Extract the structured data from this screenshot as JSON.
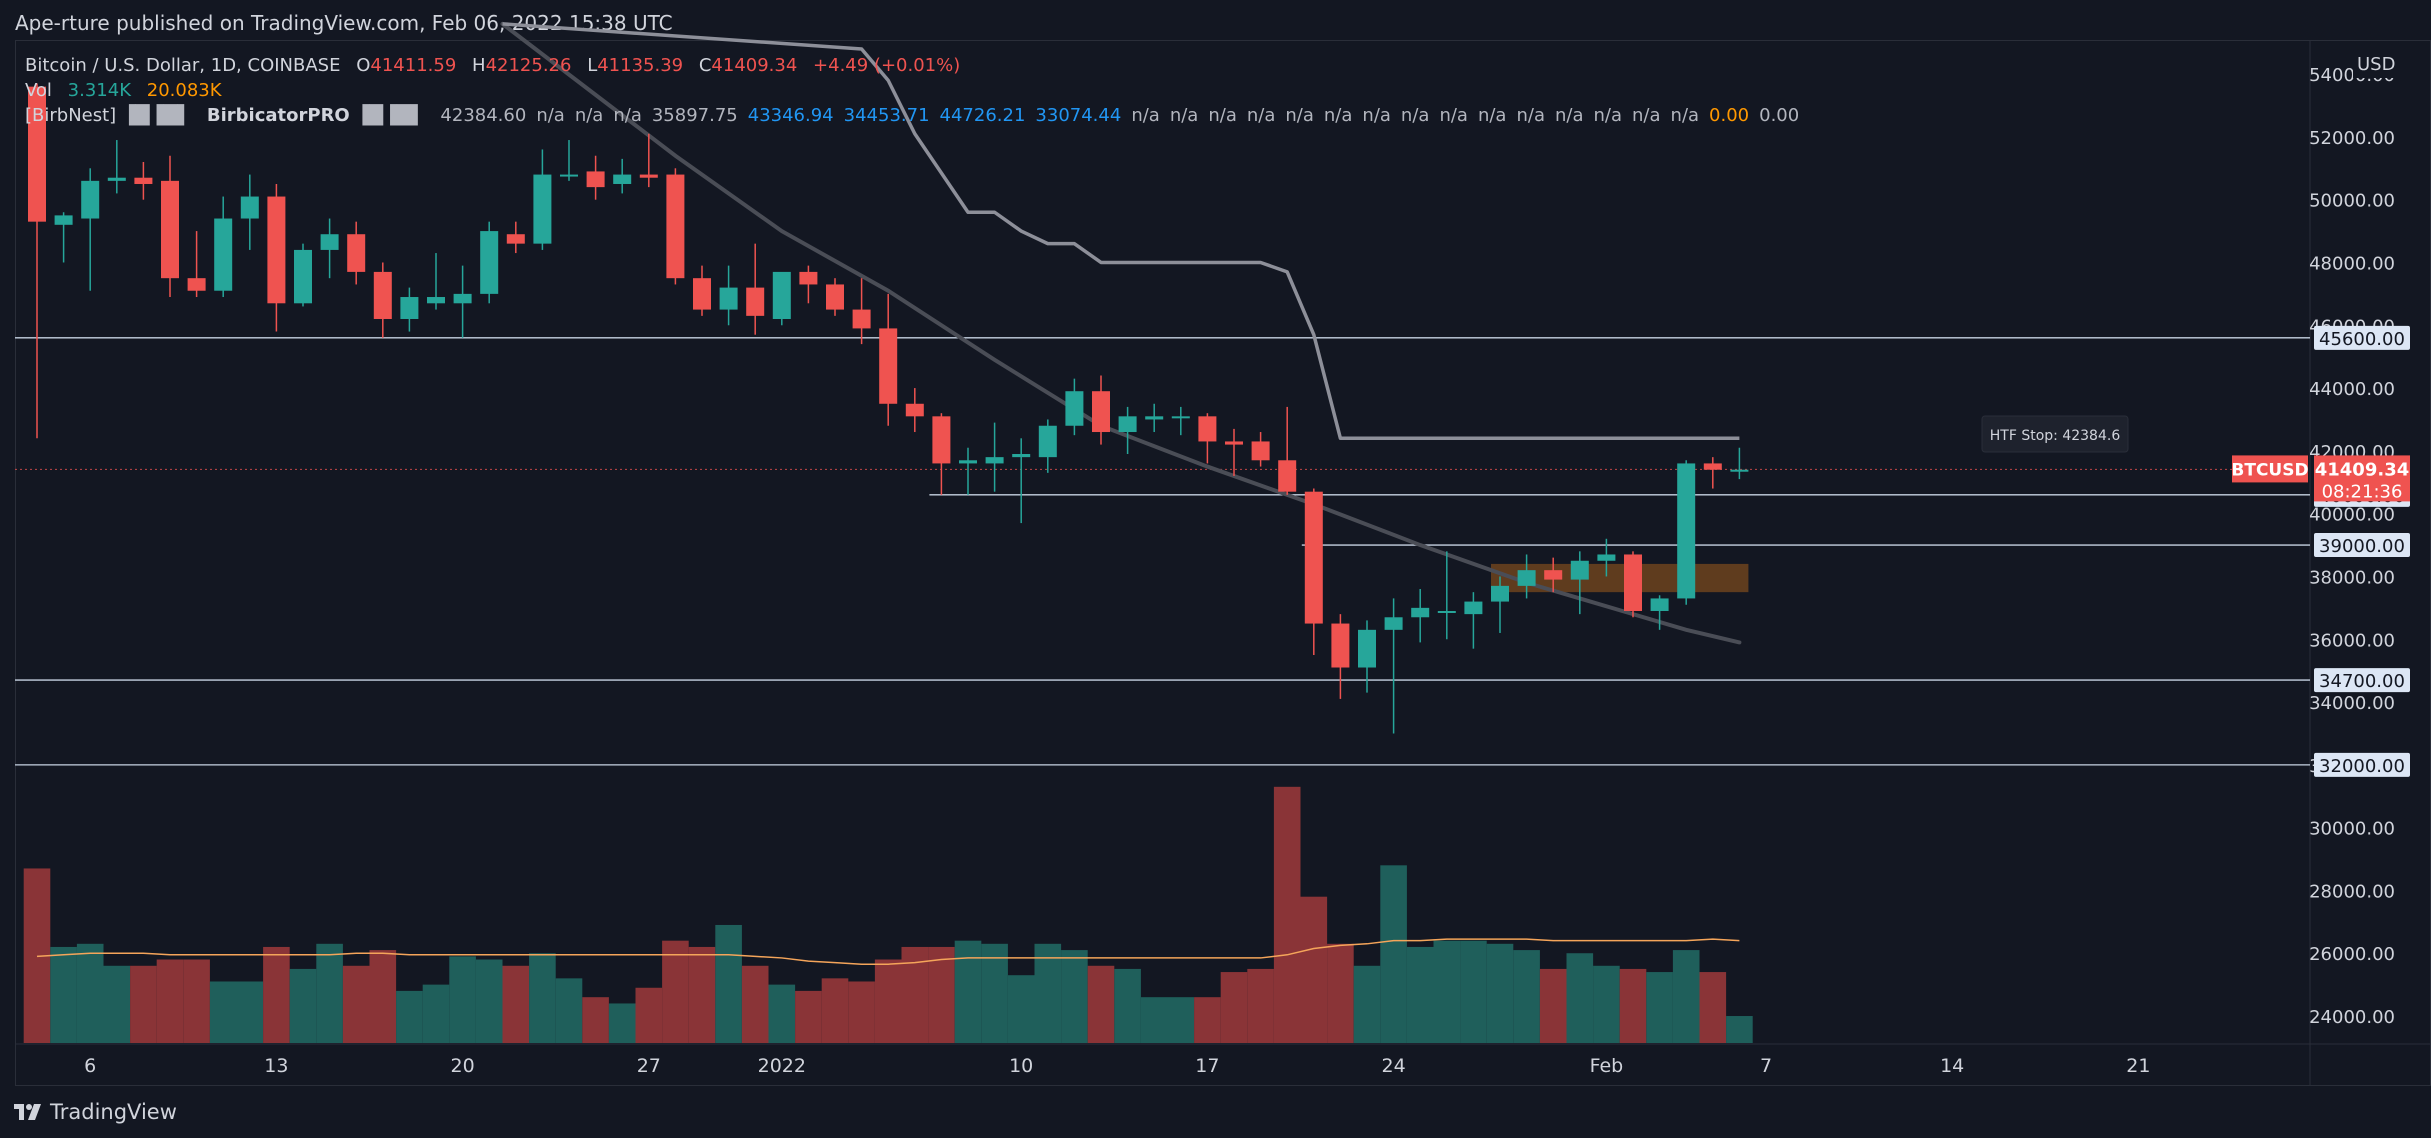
{
  "header": {
    "published": "Ape-rture published on TradingView.com, Feb 06, 2022 15:38 UTC"
  },
  "legend": {
    "symbol": "Bitcoin / U.S. Dollar, 1D, COINBASE",
    "o_label": "O",
    "o": "41411.59",
    "h_label": "H",
    "h": "42125.26",
    "l_label": "L",
    "l": "41135.39",
    "c_label": "C",
    "c": "41409.34",
    "change": "+4.49 (+0.01%)",
    "vol_label": "Vol",
    "vol": "3.314K",
    "vol_ma": "20.083K",
    "indicator_label": "[BirbNest]",
    "indicator2_label": "BirbicatorPRO",
    "ind_values": [
      "42384.60",
      "n/a",
      "n/a",
      "n/a",
      "35897.75"
    ],
    "ind_blue": [
      "43346.94",
      "34453.71",
      "44726.21",
      "33074.44"
    ],
    "ind_na": [
      "n/a",
      "n/a",
      "n/a",
      "n/a",
      "n/a",
      "n/a",
      "n/a",
      "n/a",
      "n/a",
      "n/a",
      "n/a",
      "n/a",
      "n/a",
      "n/a",
      "n/a"
    ],
    "ind_orange": "0.00",
    "ind_gray": "0.00"
  },
  "currency": "USD",
  "htf_stop": "HTF Stop: 42384.6",
  "price_tag": {
    "symbol": "BTCUSD",
    "price": "41409.34",
    "countdown": "08:21:36"
  },
  "level_tags": [
    "45600.00",
    "40600.00",
    "39000.00",
    "34700.00",
    "32000.00"
  ],
  "footer": {
    "brand": "TradingView"
  },
  "colors": {
    "bull": "#26a69a",
    "bear": "#ef5350",
    "vol_bull": "#1f5f5b",
    "vol_bear": "#8a3437",
    "line_gray": "#8d8f99",
    "ma_dark": "#4a4d56",
    "vol_ma": "#f5a55a",
    "level": "#b2c7e0"
  },
  "chart_data": {
    "type": "candlestick",
    "title": "Bitcoin / U.S. Dollar, 1D, COINBASE",
    "y_ticks": [
      "54000.00",
      "52000.00",
      "50000.00",
      "48000.00",
      "46000.00",
      "44000.00",
      "42000.00",
      "40000.00",
      "38000.00",
      "36000.00",
      "34000.00",
      "32000.00",
      "30000.00",
      "28000.00",
      "26000.00",
      "24000.00"
    ],
    "y_tick_values": [
      54000,
      52000,
      50000,
      48000,
      46000,
      44000,
      42000,
      40000,
      38000,
      36000,
      34000,
      32000,
      30000,
      28000,
      26000,
      24000
    ],
    "ylim": [
      23300,
      55500
    ],
    "x_ticks": [
      {
        "label": "6",
        "i": 2
      },
      {
        "label": "13",
        "i": 9
      },
      {
        "label": "20",
        "i": 16
      },
      {
        "label": "27",
        "i": 23
      },
      {
        "label": "2022",
        "i": 28
      },
      {
        "label": "10",
        "i": 37
      },
      {
        "label": "17",
        "i": 44
      },
      {
        "label": "24",
        "i": 51
      },
      {
        "label": "Feb",
        "i": 59
      },
      {
        "label": "7",
        "i": 65
      },
      {
        "label": "14",
        "i": 72
      },
      {
        "label": "21",
        "i": 79
      }
    ],
    "first_date": "2021-12-04",
    "candles": [
      {
        "o": 53600,
        "h": 53700,
        "l": 42400,
        "c": 49300
      },
      {
        "o": 49200,
        "h": 49600,
        "l": 48000,
        "c": 49500
      },
      {
        "o": 49400,
        "h": 51000,
        "l": 47100,
        "c": 50600
      },
      {
        "o": 50600,
        "h": 51900,
        "l": 50200,
        "c": 50700
      },
      {
        "o": 50700,
        "h": 51200,
        "l": 50000,
        "c": 50500
      },
      {
        "o": 50600,
        "h": 51400,
        "l": 46900,
        "c": 47500
      },
      {
        "o": 47500,
        "h": 49000,
        "l": 46900,
        "c": 47100
      },
      {
        "o": 47100,
        "h": 50100,
        "l": 46900,
        "c": 49400
      },
      {
        "o": 49400,
        "h": 50800,
        "l": 48400,
        "c": 50100
      },
      {
        "o": 50100,
        "h": 50500,
        "l": 45800,
        "c": 46700
      },
      {
        "o": 46700,
        "h": 48600,
        "l": 46600,
        "c": 48400
      },
      {
        "o": 48400,
        "h": 49400,
        "l": 47500,
        "c": 48900
      },
      {
        "o": 48900,
        "h": 49300,
        "l": 47300,
        "c": 47700
      },
      {
        "o": 47700,
        "h": 48000,
        "l": 45600,
        "c": 46200
      },
      {
        "o": 46200,
        "h": 47200,
        "l": 45800,
        "c": 46900
      },
      {
        "o": 46700,
        "h": 48300,
        "l": 46500,
        "c": 46900
      },
      {
        "o": 46700,
        "h": 47900,
        "l": 45600,
        "c": 47000
      },
      {
        "o": 47000,
        "h": 49300,
        "l": 46700,
        "c": 49000
      },
      {
        "o": 48900,
        "h": 49300,
        "l": 48300,
        "c": 48600
      },
      {
        "o": 48600,
        "h": 51600,
        "l": 48400,
        "c": 50800
      },
      {
        "o": 50800,
        "h": 51900,
        "l": 50600,
        "c": 50800
      },
      {
        "o": 50900,
        "h": 51400,
        "l": 50000,
        "c": 50400
      },
      {
        "o": 50500,
        "h": 51300,
        "l": 50200,
        "c": 50800
      },
      {
        "o": 50800,
        "h": 52100,
        "l": 50400,
        "c": 50700
      },
      {
        "o": 50800,
        "h": 51000,
        "l": 47300,
        "c": 47500
      },
      {
        "o": 47500,
        "h": 47900,
        "l": 46300,
        "c": 46500
      },
      {
        "o": 46500,
        "h": 47900,
        "l": 46000,
        "c": 47200
      },
      {
        "o": 47200,
        "h": 48600,
        "l": 45700,
        "c": 46300
      },
      {
        "o": 46200,
        "h": 47600,
        "l": 46000,
        "c": 47700
      },
      {
        "o": 47700,
        "h": 47900,
        "l": 46700,
        "c": 47300
      },
      {
        "o": 47300,
        "h": 47500,
        "l": 46300,
        "c": 46500
      },
      {
        "o": 46500,
        "h": 47500,
        "l": 45400,
        "c": 45900
      },
      {
        "o": 45900,
        "h": 47000,
        "l": 42800,
        "c": 43500
      },
      {
        "o": 43500,
        "h": 44000,
        "l": 42600,
        "c": 43100
      },
      {
        "o": 43100,
        "h": 43200,
        "l": 40600,
        "c": 41600
      },
      {
        "o": 41600,
        "h": 42100,
        "l": 40600,
        "c": 41700
      },
      {
        "o": 41600,
        "h": 42900,
        "l": 40700,
        "c": 41800
      },
      {
        "o": 41800,
        "h": 42400,
        "l": 39700,
        "c": 41900
      },
      {
        "o": 41800,
        "h": 43000,
        "l": 41300,
        "c": 42800
      },
      {
        "o": 42800,
        "h": 44300,
        "l": 42500,
        "c": 43900
      },
      {
        "o": 43900,
        "h": 44400,
        "l": 42200,
        "c": 42600
      },
      {
        "o": 42600,
        "h": 43400,
        "l": 41900,
        "c": 43100
      },
      {
        "o": 43000,
        "h": 43500,
        "l": 42600,
        "c": 43100
      },
      {
        "o": 43100,
        "h": 43400,
        "l": 42500,
        "c": 43100
      },
      {
        "o": 43100,
        "h": 43200,
        "l": 41600,
        "c": 42300
      },
      {
        "o": 42300,
        "h": 42700,
        "l": 41200,
        "c": 42200
      },
      {
        "o": 42300,
        "h": 42600,
        "l": 41500,
        "c": 41700
      },
      {
        "o": 41700,
        "h": 43400,
        "l": 40600,
        "c": 40700
      },
      {
        "o": 40700,
        "h": 40800,
        "l": 35500,
        "c": 36500
      },
      {
        "o": 36500,
        "h": 36800,
        "l": 34100,
        "c": 35100
      },
      {
        "o": 35100,
        "h": 36600,
        "l": 34300,
        "c": 36300
      },
      {
        "o": 36300,
        "h": 37300,
        "l": 33000,
        "c": 36700
      },
      {
        "o": 36700,
        "h": 37600,
        "l": 35900,
        "c": 37000
      },
      {
        "o": 36900,
        "h": 38800,
        "l": 36000,
        "c": 36900
      },
      {
        "o": 36800,
        "h": 37500,
        "l": 35700,
        "c": 37200
      },
      {
        "o": 37200,
        "h": 38000,
        "l": 36200,
        "c": 37700
      },
      {
        "o": 37700,
        "h": 38700,
        "l": 37300,
        "c": 38200
      },
      {
        "o": 38200,
        "h": 38600,
        "l": 37500,
        "c": 37900
      },
      {
        "o": 37900,
        "h": 38800,
        "l": 36800,
        "c": 38500
      },
      {
        "o": 38500,
        "h": 39200,
        "l": 38000,
        "c": 38700
      },
      {
        "o": 38700,
        "h": 38800,
        "l": 36700,
        "c": 36900
      },
      {
        "o": 36900,
        "h": 37400,
        "l": 36300,
        "c": 37300
      },
      {
        "o": 37300,
        "h": 41700,
        "l": 37100,
        "c": 41600
      },
      {
        "o": 41600,
        "h": 41800,
        "l": 40800,
        "c": 41400
      },
      {
        "o": 41400,
        "h": 42100,
        "l": 41100,
        "c": 41400
      }
    ],
    "volume": [
      28700,
      26200,
      26300,
      25600,
      25600,
      25800,
      25800,
      25100,
      25100,
      26200,
      25500,
      26300,
      25600,
      26100,
      24800,
      25000,
      25900,
      25800,
      25600,
      26000,
      25200,
      24600,
      24400,
      24900,
      26400,
      26200,
      26900,
      25600,
      25000,
      24800,
      25200,
      25100,
      25800,
      26200,
      26200,
      26400,
      26300,
      25300,
      26300,
      26100,
      25600,
      25500,
      24600,
      24600,
      24600,
      25400,
      25500,
      31300,
      27800,
      26300,
      25600,
      28800,
      26200,
      26400,
      26400,
      26300,
      26100,
      25500,
      26000,
      25600,
      25500,
      25400,
      26100,
      25400,
      24000
    ],
    "volume_ma": [
      25900,
      25950,
      26000,
      26000,
      26000,
      25950,
      25950,
      25950,
      25950,
      25950,
      25950,
      25950,
      26000,
      26000,
      25950,
      25950,
      25950,
      25950,
      25950,
      25950,
      25950,
      25950,
      25950,
      25950,
      25950,
      25950,
      25950,
      25900,
      25850,
      25750,
      25700,
      25650,
      25650,
      25700,
      25800,
      25850,
      25850,
      25850,
      25850,
      25850,
      25850,
      25850,
      25850,
      25850,
      25850,
      25850,
      25850,
      25950,
      26150,
      26250,
      26300,
      26400,
      26400,
      26450,
      26450,
      26450,
      26450,
      26400,
      26400,
      26400,
      26400,
      26400,
      26400,
      26450,
      26400
    ],
    "htf_stop_line": [
      {
        "i": 17.5,
        "v": 55600
      },
      {
        "i": 31,
        "v": 54800
      },
      {
        "i": 32,
        "v": 53800
      },
      {
        "i": 33,
        "v": 52100
      },
      {
        "i": 35,
        "v": 49600
      },
      {
        "i": 36,
        "v": 49600
      },
      {
        "i": 37,
        "v": 49000
      },
      {
        "i": 38,
        "v": 48600
      },
      {
        "i": 39,
        "v": 48600
      },
      {
        "i": 40,
        "v": 48000
      },
      {
        "i": 46,
        "v": 48000
      },
      {
        "i": 47,
        "v": 47700
      },
      {
        "i": 48,
        "v": 45700
      },
      {
        "i": 49,
        "v": 42400
      },
      {
        "i": 64,
        "v": 42400
      }
    ],
    "ma_line": [
      {
        "i": 17.5,
        "v": 55600
      },
      {
        "i": 24,
        "v": 51400
      },
      {
        "i": 28,
        "v": 49000
      },
      {
        "i": 32,
        "v": 47100
      },
      {
        "i": 36,
        "v": 44900
      },
      {
        "i": 40,
        "v": 42800
      },
      {
        "i": 44,
        "v": 41500
      },
      {
        "i": 48,
        "v": 40300
      },
      {
        "i": 52,
        "v": 39000
      },
      {
        "i": 56,
        "v": 37800
      },
      {
        "i": 58,
        "v": 37300
      },
      {
        "i": 60,
        "v": 36800
      },
      {
        "i": 62,
        "v": 36300
      },
      {
        "i": 64,
        "v": 35900
      }
    ],
    "levels": [
      {
        "v": 45600,
        "from": 0
      },
      {
        "v": 40600,
        "from": 34
      },
      {
        "v": 39000,
        "from": 48
      },
      {
        "v": 34700,
        "from": 0
      },
      {
        "v": 32000,
        "from": 0
      }
    ],
    "zone": {
      "from": 55,
      "to": 64,
      "low": 37500,
      "high": 38400
    },
    "current_price": 41409.34
  }
}
